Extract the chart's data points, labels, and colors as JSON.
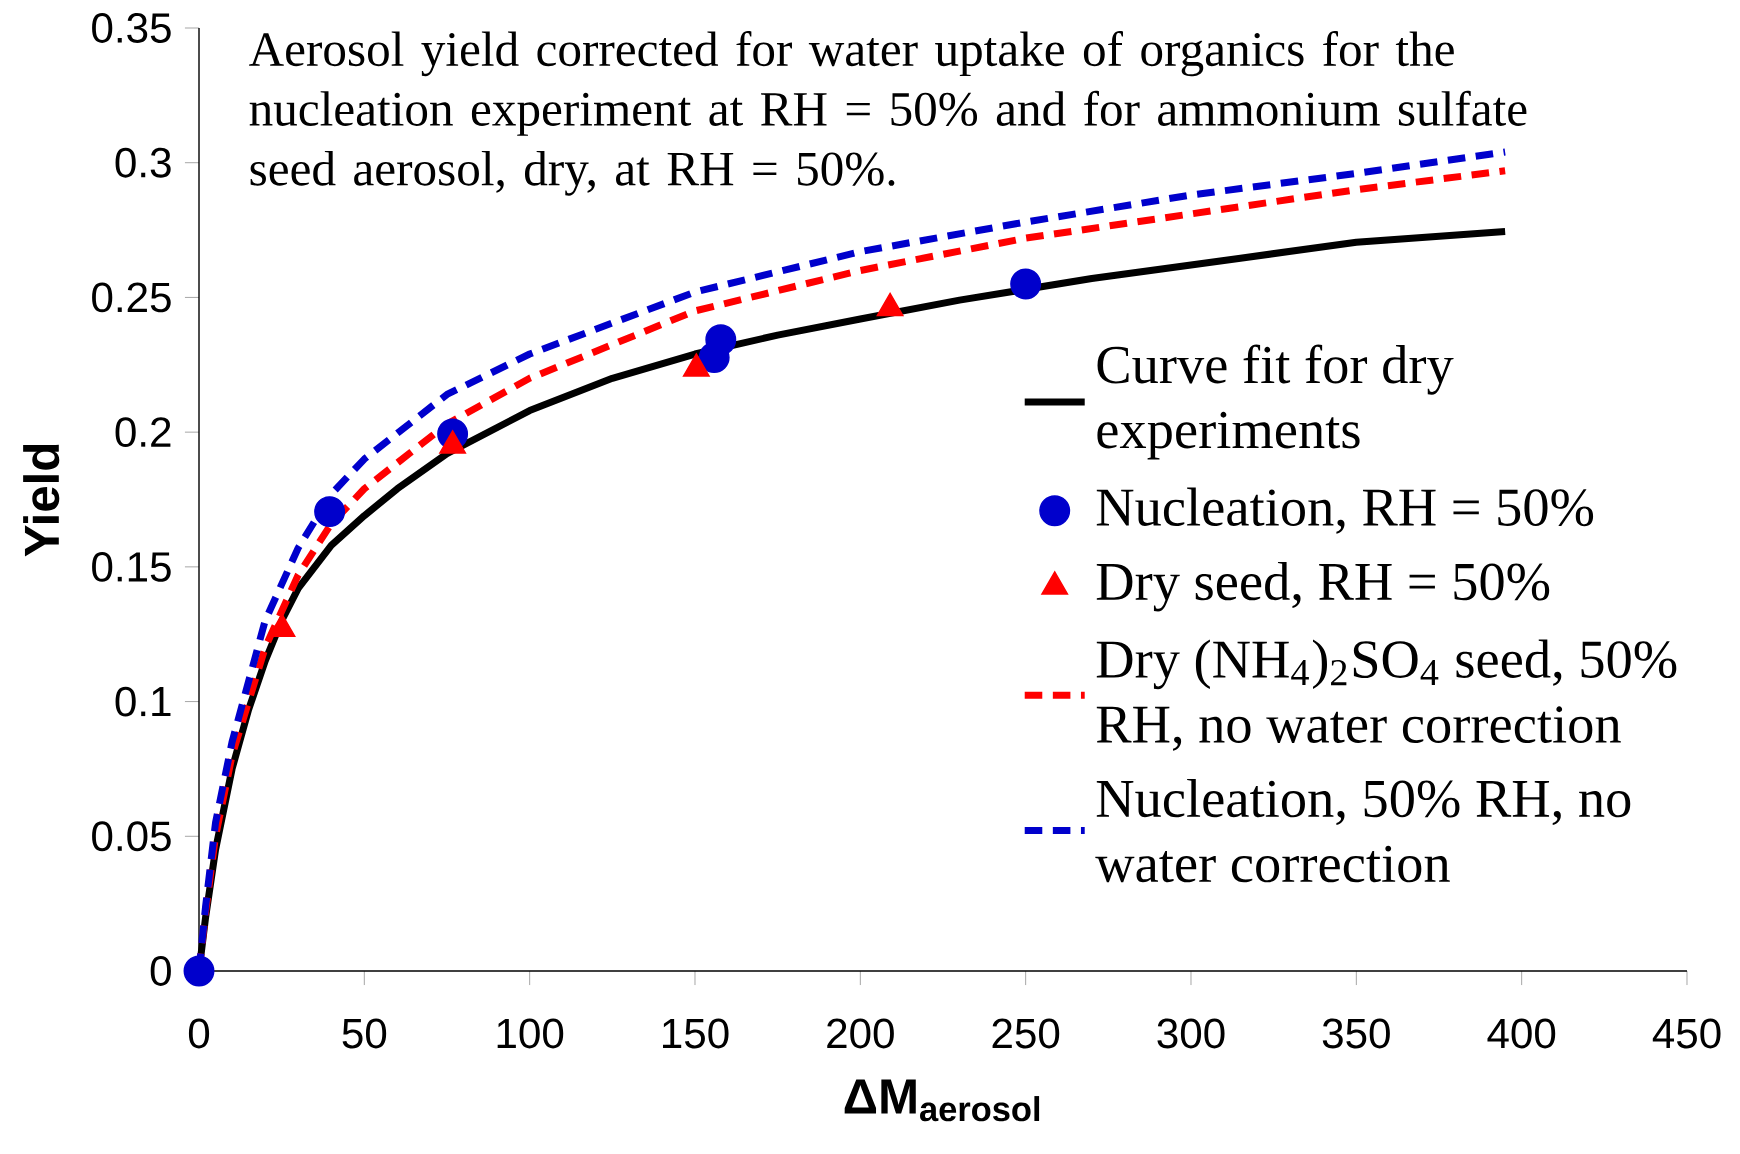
{
  "chart_data": {
    "type": "line",
    "title": "Aerosol yield corrected for water uptake of organics for the nucleation experiment at RH = 50% and for ammonium sulfate seed aerosol, dry, at RH = 50%.",
    "xlabel": "ΔM$_{aerosol}$",
    "ylabel": "Yield",
    "xlim": [
      0,
      450
    ],
    "xticks": [
      0,
      50,
      100,
      150,
      200,
      250,
      300,
      350,
      400,
      450
    ],
    "ylim": [
      0,
      0.35
    ],
    "yticks": [
      0,
      0.05,
      0.1,
      0.15,
      0.2,
      0.25,
      0.3,
      0.35
    ],
    "grid": false,
    "legend": "right",
    "series": [
      {
        "name": "Curve fit for dry experiments",
        "line_style": "solid",
        "marker": "none",
        "color": "#000000",
        "x": [
          0,
          2,
          5,
          10,
          15,
          20,
          25,
          30,
          40,
          50,
          60,
          75,
          100,
          125,
          150,
          175,
          200,
          230,
          270,
          300,
          350,
          395
        ],
        "values": [
          0,
          0.02,
          0.045,
          0.075,
          0.097,
          0.115,
          0.13,
          0.142,
          0.158,
          0.169,
          0.179,
          0.192,
          0.208,
          0.22,
          0.229,
          0.236,
          0.242,
          0.249,
          0.257,
          0.262,
          0.2705,
          0.2745
        ]
      },
      {
        "name": "Nucleation, RH = 50%",
        "type": "scatter",
        "marker": "circle",
        "color": "#0000cc",
        "x": [
          0,
          39.5,
          76.7,
          155.8,
          157.8,
          250
        ],
        "values": [
          0,
          0.1705,
          0.1993,
          0.2277,
          0.2343,
          0.255
        ]
      },
      {
        "name": "Dry seed, RH = 50%",
        "type": "scatter",
        "marker": "triangle",
        "color": "#ff0000",
        "x": [
          25.1,
          76.7,
          150.4,
          209
        ],
        "values": [
          0.127,
          0.195,
          0.2236,
          0.246
        ]
      },
      {
        "name": "Dry (NH$_{4}$)$_{2}$SO$_{4}$ seed, 50% RH, no water correction",
        "line_style": "dashed",
        "marker": "none",
        "color": "#ff0000",
        "x": [
          0,
          2,
          5,
          10,
          20,
          30,
          40,
          50,
          75,
          100,
          150,
          200,
          250,
          300,
          350,
          395
        ],
        "values": [
          0,
          0.022,
          0.05,
          0.08,
          0.12,
          0.147,
          0.166,
          0.179,
          0.203,
          0.22,
          0.245,
          0.26,
          0.272,
          0.281,
          0.29,
          0.297
        ]
      },
      {
        "name": "Nucleation, 50% RH, no water correction",
        "line_style": "dashed",
        "marker": "none",
        "color": "#0000cc",
        "x": [
          0,
          2,
          5,
          10,
          20,
          30,
          40,
          50,
          75,
          100,
          150,
          200,
          250,
          300,
          350,
          395
        ],
        "values": [
          0,
          0.024,
          0.055,
          0.085,
          0.13,
          0.157,
          0.177,
          0.19,
          0.214,
          0.229,
          0.252,
          0.267,
          0.278,
          0.288,
          0.296,
          0.304
        ]
      }
    ]
  }
}
